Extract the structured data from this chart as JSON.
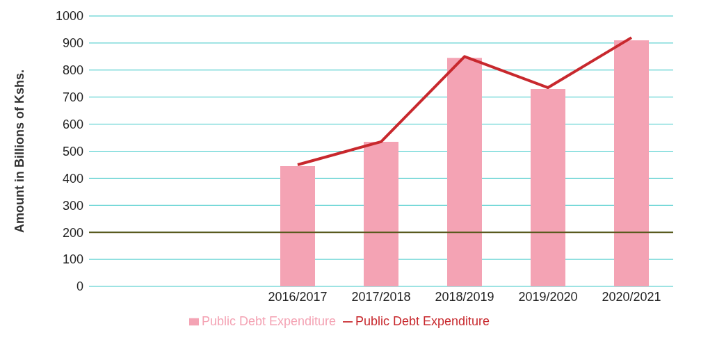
{
  "chart_data": {
    "type": "bar",
    "ylabel": "Amount in Billions of Kshs.",
    "categories": [
      null,
      null,
      "2016/2017",
      "2017/2018",
      "2018/2019",
      "2019/2020",
      "2020/2021"
    ],
    "series": [
      {
        "name": "Public Debt Expenditure",
        "color": "#f4a3b4",
        "values": [
          null,
          null,
          445,
          535,
          845,
          730,
          910
        ]
      },
      {
        "name": "Public Debt Expenditure",
        "type": "line",
        "color": "#c8282d",
        "values": [
          null,
          null,
          450,
          535,
          850,
          735,
          920
        ]
      }
    ],
    "ylim": [
      0,
      1000
    ],
    "yticks": [
      0,
      100,
      200,
      300,
      400,
      500,
      600,
      700,
      800,
      900,
      1000
    ],
    "grid": "y",
    "legend": "bottom",
    "marker": "none",
    "ref_lines": [
      {
        "axis": "y",
        "value": 200,
        "color": "#5a5a1e"
      }
    ]
  }
}
